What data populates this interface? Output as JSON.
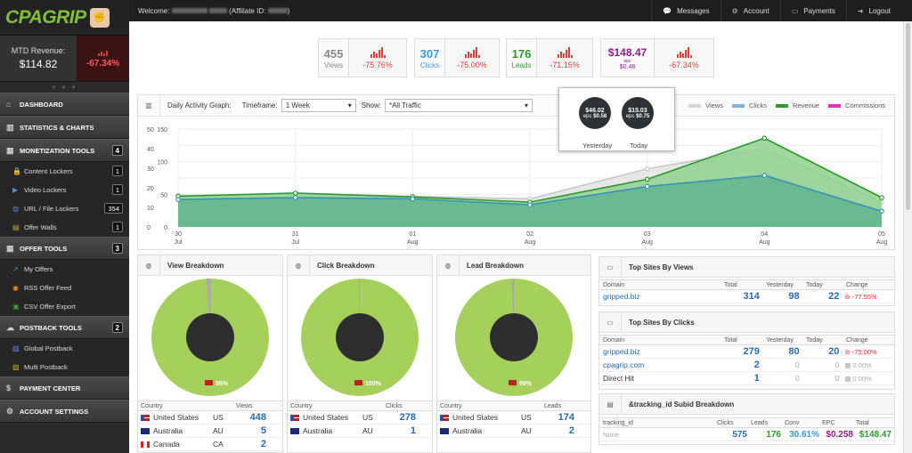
{
  "brand": {
    "logo_text": "CPAGRIP"
  },
  "revenue": {
    "label": "MTD Revenue:",
    "value": "$114.82",
    "change": "-67.34%"
  },
  "sidebar": {
    "items": [
      {
        "label": "DASHBOARD",
        "icon": "home-icon"
      },
      {
        "label": "STATISTICS & CHARTS",
        "icon": "bar-chart-icon"
      },
      {
        "label": "MONETIZATION TOOLS",
        "icon": "grid-icon",
        "count": "4"
      },
      {
        "label": "Content Lockers",
        "icon": "lock-icon",
        "count": "1",
        "sub": true
      },
      {
        "label": "Video Lockers",
        "icon": "video-icon",
        "count": "1",
        "sub": true
      },
      {
        "label": "URL / File Lockers",
        "icon": "globe-icon",
        "count": "354",
        "sub": true
      },
      {
        "label": "Offer Walls",
        "icon": "wall-icon",
        "count": "1",
        "sub": true
      },
      {
        "label": "OFFER TOOLS",
        "icon": "grid-icon",
        "count": "3"
      },
      {
        "label": "My Offers",
        "icon": "external-link-icon",
        "sub": true
      },
      {
        "label": "RSS Offer Feed",
        "icon": "rss-icon",
        "sub": true
      },
      {
        "label": "CSV Offer Export",
        "icon": "csv-icon",
        "sub": true
      },
      {
        "label": "POSTBACK TOOLS",
        "icon": "cloud-icon",
        "count": "2"
      },
      {
        "label": "Global Postback",
        "icon": "postback-icon",
        "sub": true
      },
      {
        "label": "Multi Postback",
        "icon": "multi-postback-icon",
        "sub": true
      },
      {
        "label": "PAYMENT CENTER",
        "icon": "dollar-icon"
      },
      {
        "label": "ACCOUNT SETTINGS",
        "icon": "gear-icon"
      }
    ]
  },
  "topbar": {
    "welcome_prefix": "Welcome:",
    "affiliate_label": "(Affiliate ID:",
    "messages": "Messages",
    "account": "Account",
    "payments": "Payments",
    "logout": "Logout"
  },
  "stats": [
    {
      "value": "455",
      "label": "Views",
      "change": "-75.76%",
      "color": "#888888"
    },
    {
      "value": "307",
      "label": "Clicks",
      "change": "-75.00%",
      "color": "#3b9ad9"
    },
    {
      "value": "176",
      "label": "Leads",
      "change": "-71.15%",
      "color": "#2a9d2a"
    },
    {
      "value": "$148.47",
      "label": "$0.48",
      "sublabel": "epc",
      "change": "-67.34%",
      "color": "#8a1f8a"
    }
  ],
  "graph": {
    "title": "Daily Activity Graph:",
    "timeframe_label": "Timeframe:",
    "timeframe_value": "1 Week",
    "show_label": "Show:",
    "show_value": "*All Traffic",
    "legend": [
      {
        "name": "Views",
        "color": "#d4d4d4"
      },
      {
        "name": "Clicks",
        "color": "#7fb2d9"
      },
      {
        "name": "Revenue",
        "color": "#2b9a2b"
      },
      {
        "name": "Commissions",
        "color": "#ee2bbd"
      }
    ],
    "tooltip": {
      "yesterday": {
        "value": "$46.02",
        "epc_label": "epc",
        "epc": "$0.58",
        "label": "Yesterday"
      },
      "today": {
        "value": "$15.03",
        "epc_label": "epc",
        "epc": "$0.75",
        "label": "Today"
      }
    }
  },
  "chart_data": {
    "type": "area",
    "x": [
      "30 Jul",
      "31 Jul",
      "01 Aug",
      "02 Aug",
      "03 Aug",
      "04 Aug",
      "05 Aug"
    ],
    "x_day": [
      "30",
      "31",
      "01",
      "02",
      "03",
      "04",
      "05"
    ],
    "x_mon": [
      "Jul",
      "Jul",
      "Aug",
      "Aug",
      "Aug",
      "Aug",
      "Aug"
    ],
    "ylim": [
      0,
      150
    ],
    "yticks": [
      "150",
      "100",
      "50",
      "0"
    ],
    "yticks_left": [
      "50",
      "40",
      "30",
      "20",
      "10",
      "0"
    ],
    "series": [
      {
        "name": "Views",
        "color": "#d4d4d4",
        "values": [
          48,
          51,
          47,
          43,
          89,
          120,
          38
        ]
      },
      {
        "name": "Clicks",
        "color": "#4a9cc9",
        "values": [
          42,
          45,
          43,
          34,
          62,
          79,
          24
        ]
      },
      {
        "name": "Revenue",
        "color": "#2b9a2b",
        "values": [
          47,
          52,
          46,
          38,
          73,
          136,
          45
        ]
      }
    ]
  },
  "view_breakdown": {
    "title": "View Breakdown",
    "pct": "98%",
    "col_metric": "Views",
    "rows": [
      {
        "country": "United States",
        "code": "US",
        "value": "448"
      },
      {
        "country": "Australia",
        "code": "AU",
        "value": "5"
      },
      {
        "country": "Canada",
        "code": "CA",
        "value": "2"
      }
    ]
  },
  "click_breakdown": {
    "title": "Click Breakdown",
    "pct": "100%",
    "col_metric": "Clicks",
    "rows": [
      {
        "country": "United States",
        "code": "US",
        "value": "278"
      },
      {
        "country": "Australia",
        "code": "AU",
        "value": "1"
      }
    ]
  },
  "lead_breakdown": {
    "title": "Lead Breakdown",
    "pct": "99%",
    "col_metric": "Leads",
    "rows": [
      {
        "country": "United States",
        "code": "US",
        "value": "174"
      },
      {
        "country": "Australia",
        "code": "AU",
        "value": "2"
      }
    ]
  },
  "country_col": "Country",
  "top_views": {
    "title": "Top Sites By Views",
    "cols": [
      "Domain",
      "Total",
      "Yesterday",
      "Today",
      "Change"
    ],
    "rows": [
      {
        "domain": "gripped.biz",
        "total": "314",
        "yesterday": "98",
        "today": "22",
        "change": "-77.55%"
      }
    ]
  },
  "top_clicks": {
    "title": "Top Sites By Clicks",
    "cols": [
      "Domain",
      "Total",
      "Yesterday",
      "Today",
      "Change"
    ],
    "rows": [
      {
        "domain": "gripped.biz",
        "total": "279",
        "yesterday": "80",
        "today": "20",
        "change": "-75.00%"
      },
      {
        "domain": "cpagrip.com",
        "total": "2",
        "yesterday": "0",
        "today": "0",
        "change": "0.00%"
      },
      {
        "domain": "Direct Hit",
        "total": "1",
        "yesterday": "0",
        "today": "0",
        "change": "0.00%"
      }
    ]
  },
  "subid": {
    "title": "&tracking_id Subid Breakdown",
    "cols": [
      "tracking_id",
      "Clicks",
      "Leads",
      "Conv",
      "EPC",
      "Total"
    ],
    "rows": [
      {
        "id": "None",
        "clicks": "575",
        "leads": "176",
        "conv": "30.61%",
        "epc": "$0.258",
        "total": "$148.47"
      }
    ]
  }
}
